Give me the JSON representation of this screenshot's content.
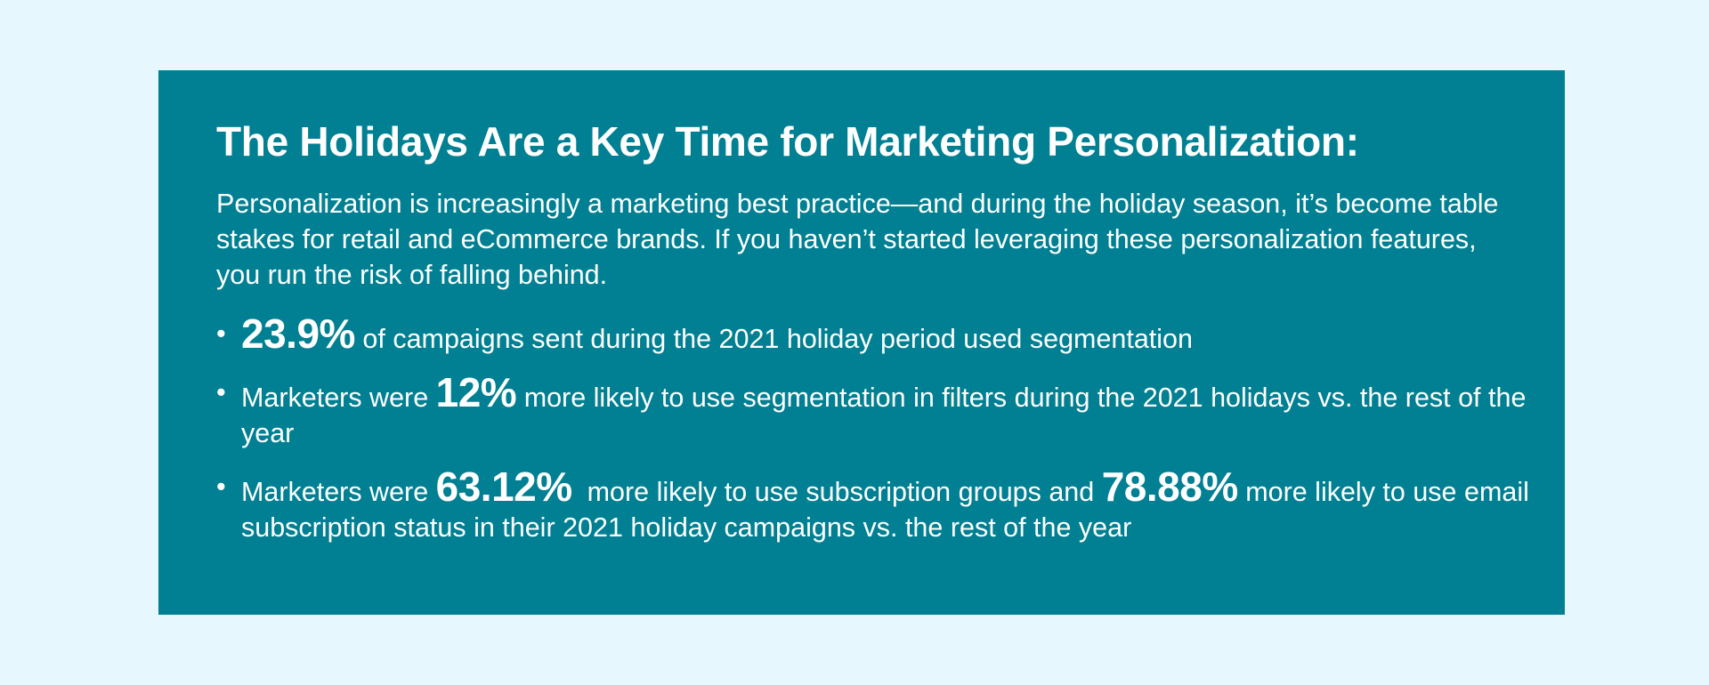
{
  "colors": {
    "page_background": "#e6f8fd",
    "card_background": "#008092",
    "text": "#ffffff"
  },
  "title": "The Holidays Are a Key Time for Marketing Personalization:",
  "intro": "Personalization is increasingly a marketing best practice—and during the holiday season, it’s become table stakes for retail and eCommerce brands. If you haven’t started leveraging these personalization features, you run the risk of falling behind.",
  "bullet_marker": "•",
  "bullets": [
    {
      "stat": "23.9%",
      "text_after": " of campaigns sent during the 2021 holiday period used segmentation"
    },
    {
      "text_before": "Marketers were ",
      "stat": "12%",
      "text_after": " more likely to use segmentation in filters during the 2021 holidays vs. the rest of the year"
    },
    {
      "text_before": "Marketers were ",
      "stat": "63.12%",
      "text_middle": "  more likely to use subscription groups and ",
      "stat2": "78.88%",
      "text_after": " more likely to use email subscription status in their 2021 holiday campaigns vs. the rest of the year"
    }
  ]
}
